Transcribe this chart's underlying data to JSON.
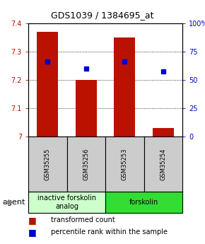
{
  "title": "GDS1039 / 1384695_at",
  "samples": [
    "GSM35255",
    "GSM35256",
    "GSM35253",
    "GSM35254"
  ],
  "bar_values": [
    7.37,
    7.2,
    7.35,
    7.03
  ],
  "percentile_values": [
    7.265,
    7.24,
    7.265,
    7.23
  ],
  "ylim": [
    7.0,
    7.4
  ],
  "yticks": [
    7.0,
    7.1,
    7.2,
    7.3,
    7.4
  ],
  "ytick_labels": [
    "7",
    "7.1",
    "7.2",
    "7.3",
    "7.4"
  ],
  "y2ticks": [
    0,
    25,
    50,
    75,
    100
  ],
  "y2labels": [
    "0",
    "25",
    "50",
    "75",
    "100%"
  ],
  "bar_color": "#bb1100",
  "percentile_color": "#0000cc",
  "groups": [
    {
      "label": "inactive forskolin\nanalog",
      "color": "#ccffcc",
      "span": [
        0,
        2
      ]
    },
    {
      "label": "forskolin",
      "color": "#33dd33",
      "span": [
        2,
        4
      ]
    }
  ],
  "agent_label": "agent",
  "legend_items": [
    {
      "color": "#bb1100",
      "label": "transformed count"
    },
    {
      "color": "#0000cc",
      "label": "percentile rank within the sample"
    }
  ],
  "bar_width": 0.55,
  "sample_box_color": "#cccccc",
  "title_fontsize": 9,
  "tick_fontsize": 7,
  "sample_fontsize": 6,
  "group_fontsize": 7,
  "legend_fontsize": 7
}
